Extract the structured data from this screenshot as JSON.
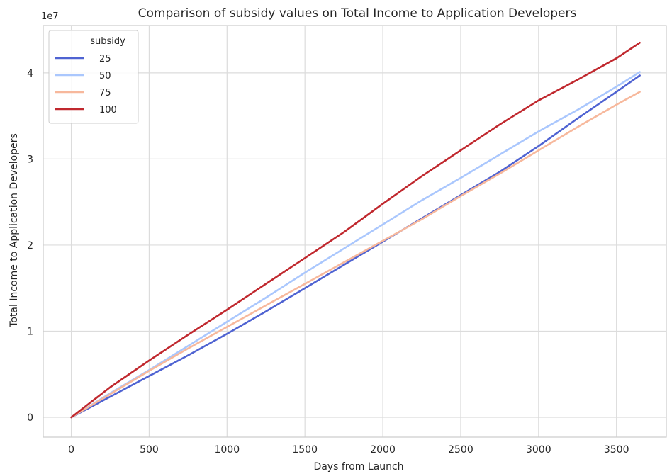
{
  "chart_data": {
    "type": "line",
    "title": "Comparison of subsidy values on Total Income to Application Developers",
    "xlabel": "Days from Launch",
    "ylabel": "Total Income to Application Developers",
    "y_offset_label": "1e7",
    "xlim": [
      -180,
      3820
    ],
    "ylim": [
      -2300000,
      45500000
    ],
    "x_ticks": [
      0,
      500,
      1000,
      1500,
      2000,
      2500,
      3000,
      3500
    ],
    "y_ticks": [
      0,
      10000000,
      20000000,
      30000000,
      40000000
    ],
    "y_tick_labels": [
      "0",
      "1",
      "2",
      "3",
      "4"
    ],
    "grid": true,
    "legend": {
      "title": "subsidy",
      "position": "top-left"
    },
    "series": [
      {
        "name": "25",
        "color": "#4f63d2",
        "x": [
          0,
          250,
          500,
          750,
          1000,
          1250,
          1500,
          1750,
          2000,
          2250,
          2500,
          2750,
          3000,
          3250,
          3500,
          3650
        ],
        "y": [
          0,
          2400000,
          4800000,
          7200000,
          9700000,
          12300000,
          15000000,
          17700000,
          20400000,
          23100000,
          25800000,
          28500000,
          31500000,
          34700000,
          37800000,
          39700000
        ]
      },
      {
        "name": "50",
        "color": "#aac7fd",
        "x": [
          0,
          250,
          500,
          750,
          1000,
          1250,
          1500,
          1750,
          2000,
          2250,
          2500,
          2750,
          3000,
          3250,
          3500,
          3650
        ],
        "y": [
          0,
          2800000,
          5500000,
          8300000,
          11100000,
          13900000,
          16800000,
          19600000,
          22400000,
          25200000,
          27800000,
          30500000,
          33200000,
          35700000,
          38400000,
          40100000
        ]
      },
      {
        "name": "75",
        "color": "#f7b89c",
        "x": [
          0,
          250,
          500,
          750,
          1000,
          1250,
          1500,
          1750,
          2000,
          2250,
          2500,
          2750,
          3000,
          3250,
          3500,
          3650
        ],
        "y": [
          0,
          2700000,
          5400000,
          8000000,
          10500000,
          13000000,
          15500000,
          18000000,
          20500000,
          23000000,
          25700000,
          28300000,
          31000000,
          33700000,
          36300000,
          37800000
        ]
      },
      {
        "name": "100",
        "color": "#c0282e",
        "x": [
          0,
          250,
          500,
          750,
          1000,
          1250,
          1500,
          1750,
          2000,
          2250,
          2500,
          2750,
          3000,
          3250,
          3500,
          3650
        ],
        "y": [
          0,
          3500000,
          6600000,
          9600000,
          12500000,
          15500000,
          18500000,
          21500000,
          24800000,
          28000000,
          31000000,
          34000000,
          36800000,
          39200000,
          41700000,
          43500000
        ]
      }
    ]
  }
}
